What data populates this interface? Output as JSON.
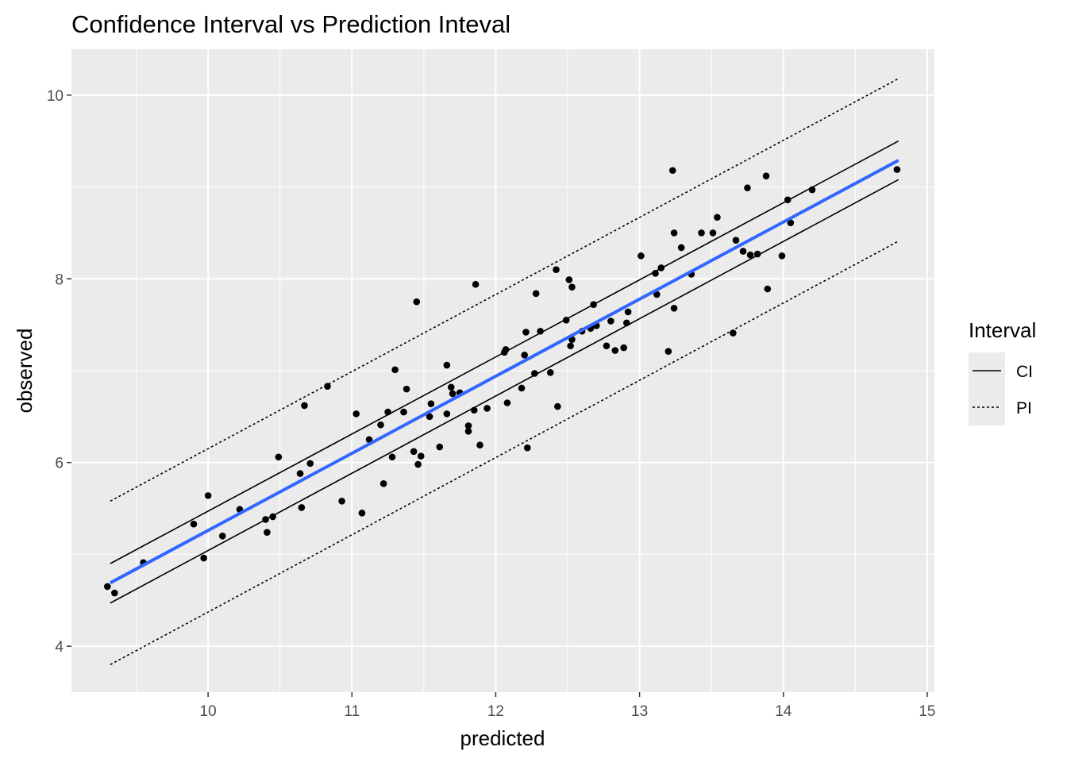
{
  "chart_data": {
    "type": "scatter",
    "title": "Confidence Interval vs Prediction Inteval",
    "xlabel": "predicted",
    "ylabel": "observed",
    "xlim": [
      9.05,
      15.05
    ],
    "ylim": [
      3.5,
      10.5
    ],
    "x_ticks": [
      10,
      11,
      12,
      13,
      14,
      15
    ],
    "y_ticks": [
      4,
      6,
      8,
      10
    ],
    "grid": true,
    "legend": {
      "title": "Interval",
      "position": "right",
      "entries": [
        {
          "label": "CI",
          "linetype": "solid"
        },
        {
          "label": "PI",
          "linetype": "dotted"
        }
      ]
    },
    "fit_line": {
      "color": "#3366ff",
      "x": [
        9.32,
        14.8
      ],
      "y": [
        4.69,
        9.29
      ]
    },
    "ci_upper": {
      "x": [
        9.32,
        14.8
      ],
      "y": [
        4.9,
        9.5
      ]
    },
    "ci_lower": {
      "x": [
        9.32,
        14.8
      ],
      "y": [
        4.47,
        9.08
      ]
    },
    "pi_upper": {
      "x": [
        9.32,
        14.8
      ],
      "y": [
        5.58,
        10.18
      ]
    },
    "pi_lower": {
      "x": [
        9.32,
        14.8
      ],
      "y": [
        3.8,
        8.41
      ]
    },
    "points": [
      [
        9.3,
        4.65
      ],
      [
        9.35,
        4.58
      ],
      [
        9.55,
        4.91
      ],
      [
        9.9,
        5.33
      ],
      [
        9.97,
        4.96
      ],
      [
        10.0,
        5.64
      ],
      [
        10.1,
        5.2
      ],
      [
        10.22,
        5.49
      ],
      [
        10.4,
        5.38
      ],
      [
        10.41,
        5.24
      ],
      [
        10.45,
        5.41
      ],
      [
        10.49,
        6.06
      ],
      [
        10.64,
        5.88
      ],
      [
        10.65,
        5.51
      ],
      [
        10.67,
        6.62
      ],
      [
        10.71,
        5.99
      ],
      [
        10.83,
        6.83
      ],
      [
        10.93,
        5.58
      ],
      [
        11.03,
        6.53
      ],
      [
        11.07,
        5.45
      ],
      [
        11.12,
        6.25
      ],
      [
        11.2,
        6.41
      ],
      [
        11.22,
        5.77
      ],
      [
        11.25,
        6.55
      ],
      [
        11.28,
        6.06
      ],
      [
        11.3,
        7.01
      ],
      [
        11.36,
        6.55
      ],
      [
        11.38,
        6.8
      ],
      [
        11.43,
        6.12
      ],
      [
        11.45,
        7.75
      ],
      [
        11.46,
        5.98
      ],
      [
        11.48,
        6.07
      ],
      [
        11.54,
        6.5
      ],
      [
        11.55,
        6.64
      ],
      [
        11.61,
        6.17
      ],
      [
        11.66,
        7.06
      ],
      [
        11.66,
        6.53
      ],
      [
        11.69,
        6.82
      ],
      [
        11.7,
        6.75
      ],
      [
        11.75,
        6.76
      ],
      [
        11.81,
        6.4
      ],
      [
        11.81,
        6.34
      ],
      [
        11.85,
        6.57
      ],
      [
        11.86,
        7.94
      ],
      [
        11.89,
        6.19
      ],
      [
        11.94,
        6.59
      ],
      [
        12.06,
        7.2
      ],
      [
        12.07,
        7.23
      ],
      [
        12.08,
        6.65
      ],
      [
        12.18,
        6.81
      ],
      [
        12.2,
        7.17
      ],
      [
        12.21,
        7.42
      ],
      [
        12.22,
        6.16
      ],
      [
        12.27,
        6.97
      ],
      [
        12.28,
        7.84
      ],
      [
        12.31,
        7.43
      ],
      [
        12.38,
        6.98
      ],
      [
        12.42,
        8.1
      ],
      [
        12.43,
        6.61
      ],
      [
        12.49,
        7.55
      ],
      [
        12.51,
        7.99
      ],
      [
        12.52,
        7.27
      ],
      [
        12.53,
        7.34
      ],
      [
        12.53,
        7.91
      ],
      [
        12.6,
        7.43
      ],
      [
        12.66,
        7.46
      ],
      [
        12.68,
        7.72
      ],
      [
        12.7,
        7.49
      ],
      [
        12.77,
        7.27
      ],
      [
        12.8,
        7.54
      ],
      [
        12.83,
        7.22
      ],
      [
        12.89,
        7.25
      ],
      [
        12.91,
        7.52
      ],
      [
        12.92,
        7.64
      ],
      [
        13.01,
        8.25
      ],
      [
        13.11,
        8.06
      ],
      [
        13.12,
        7.83
      ],
      [
        13.15,
        8.12
      ],
      [
        13.2,
        7.21
      ],
      [
        13.23,
        9.18
      ],
      [
        13.24,
        8.5
      ],
      [
        13.24,
        7.68
      ],
      [
        13.29,
        8.34
      ],
      [
        13.36,
        8.05
      ],
      [
        13.43,
        8.5
      ],
      [
        13.51,
        8.5
      ],
      [
        13.54,
        8.67
      ],
      [
        13.65,
        7.41
      ],
      [
        13.67,
        8.42
      ],
      [
        13.72,
        8.3
      ],
      [
        13.75,
        8.99
      ],
      [
        13.77,
        8.26
      ],
      [
        13.82,
        8.27
      ],
      [
        13.88,
        9.12
      ],
      [
        13.89,
        7.89
      ],
      [
        13.99,
        8.25
      ],
      [
        14.03,
        8.86
      ],
      [
        14.05,
        8.61
      ],
      [
        14.2,
        8.97
      ],
      [
        14.79,
        9.19
      ]
    ]
  }
}
